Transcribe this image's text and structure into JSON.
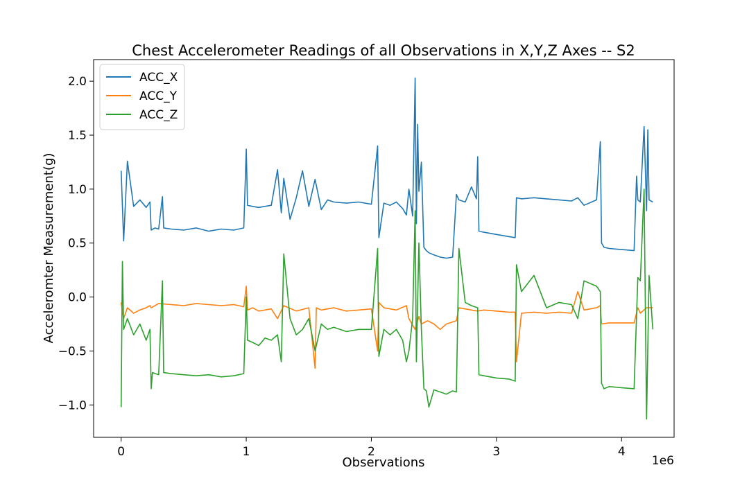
{
  "chart_data": {
    "type": "line",
    "title": "Chest Accelerometer Readings of all Observations in X,Y,Z Axes -- S2",
    "xlabel": "Observations",
    "ylabel": "Acceleromter Measurement(g)",
    "x_offset_label": "1e6",
    "xlim": [
      -0.22,
      4.42
    ],
    "ylim": [
      -1.3,
      2.2
    ],
    "xticks": [
      0,
      1,
      2,
      3,
      4
    ],
    "xtick_labels": [
      "0",
      "1",
      "2",
      "3",
      "4"
    ],
    "yticks": [
      -1.0,
      -0.5,
      0.0,
      0.5,
      1.0,
      1.5,
      2.0
    ],
    "ytick_labels": [
      "−1.0",
      "−0.5",
      "0.0",
      "0.5",
      "1.0",
      "1.5",
      "2.0"
    ],
    "grid": false,
    "legend": "top-left",
    "series": [
      {
        "name": "ACC_X",
        "color": "#1f77b4",
        "x": [
          0,
          0.02,
          0.05,
          0.1,
          0.15,
          0.2,
          0.23,
          0.24,
          0.27,
          0.3,
          0.33,
          0.34,
          0.4,
          0.5,
          0.6,
          0.7,
          0.8,
          0.9,
          0.98,
          1.0,
          1.01,
          1.05,
          1.1,
          1.2,
          1.25,
          1.28,
          1.3,
          1.35,
          1.4,
          1.45,
          1.5,
          1.55,
          1.6,
          1.65,
          1.7,
          1.8,
          1.9,
          2.0,
          2.05,
          2.06,
          2.1,
          2.15,
          2.2,
          2.25,
          2.28,
          2.3,
          2.33,
          2.35,
          2.36,
          2.37,
          2.38,
          2.4,
          2.42,
          2.44,
          2.46,
          2.5,
          2.55,
          2.6,
          2.65,
          2.68,
          2.7,
          2.75,
          2.8,
          2.84,
          2.85,
          2.86,
          2.9,
          3.0,
          3.1,
          3.15,
          3.16,
          3.2,
          3.3,
          3.4,
          3.5,
          3.6,
          3.65,
          3.7,
          3.8,
          3.83,
          3.84,
          3.86,
          3.9,
          4.0,
          4.1,
          4.12,
          4.13,
          4.15,
          4.18,
          4.2,
          4.21,
          4.22,
          4.25
        ],
        "y": [
          1.17,
          0.52,
          1.26,
          0.84,
          0.9,
          0.83,
          0.88,
          0.62,
          0.64,
          0.63,
          0.93,
          0.64,
          0.63,
          0.62,
          0.64,
          0.61,
          0.63,
          0.62,
          0.64,
          1.37,
          0.85,
          0.84,
          0.83,
          0.85,
          1.18,
          0.78,
          1.1,
          0.72,
          0.92,
          1.17,
          0.84,
          1.09,
          0.81,
          0.9,
          0.88,
          0.87,
          0.88,
          0.86,
          1.4,
          0.55,
          0.87,
          0.85,
          0.88,
          0.82,
          0.76,
          1.0,
          0.75,
          2.03,
          0.68,
          1.6,
          0.98,
          1.25,
          0.46,
          0.43,
          0.41,
          0.39,
          0.37,
          0.36,
          0.37,
          0.95,
          0.9,
          0.88,
          1.02,
          0.91,
          1.3,
          0.61,
          0.6,
          0.58,
          0.56,
          0.55,
          0.92,
          0.91,
          0.92,
          0.91,
          0.9,
          0.89,
          0.92,
          0.85,
          0.9,
          1.44,
          0.5,
          0.46,
          0.45,
          0.44,
          0.43,
          1.12,
          0.9,
          0.88,
          1.58,
          0.8,
          1.55,
          0.9,
          0.88
        ]
      },
      {
        "name": "ACC_Y",
        "color": "#ff7f0e",
        "x": [
          0,
          0.02,
          0.05,
          0.1,
          0.15,
          0.2,
          0.23,
          0.24,
          0.3,
          0.4,
          0.5,
          0.6,
          0.7,
          0.8,
          0.9,
          0.98,
          1.0,
          1.01,
          1.05,
          1.1,
          1.2,
          1.25,
          1.3,
          1.4,
          1.5,
          1.55,
          1.56,
          1.6,
          1.7,
          1.8,
          1.9,
          2.0,
          2.05,
          2.06,
          2.1,
          2.2,
          2.28,
          2.3,
          2.35,
          2.38,
          2.4,
          2.45,
          2.5,
          2.55,
          2.6,
          2.68,
          2.7,
          2.8,
          2.85,
          2.9,
          3.0,
          3.1,
          3.15,
          3.16,
          3.2,
          3.3,
          3.4,
          3.5,
          3.6,
          3.65,
          3.7,
          3.8,
          3.83,
          3.84,
          3.9,
          4.0,
          4.1,
          4.13,
          4.15,
          4.2,
          4.25
        ],
        "y": [
          -0.05,
          -0.2,
          -0.1,
          -0.15,
          -0.12,
          -0.1,
          -0.08,
          -0.1,
          -0.06,
          -0.07,
          -0.08,
          -0.06,
          -0.07,
          -0.08,
          -0.07,
          -0.09,
          0.1,
          -0.12,
          -0.1,
          -0.13,
          -0.11,
          -0.2,
          -0.08,
          -0.13,
          -0.1,
          -0.66,
          -0.1,
          -0.12,
          -0.1,
          -0.13,
          -0.12,
          -0.11,
          -0.5,
          -0.05,
          -0.1,
          -0.12,
          -0.08,
          -0.2,
          -0.3,
          -0.18,
          -0.25,
          -0.22,
          -0.25,
          -0.3,
          -0.25,
          -0.22,
          -0.1,
          -0.12,
          -0.13,
          -0.12,
          -0.13,
          -0.14,
          -0.14,
          -0.6,
          -0.15,
          -0.14,
          -0.15,
          -0.14,
          -0.15,
          0.05,
          -0.12,
          -0.1,
          -0.08,
          -0.25,
          -0.24,
          -0.24,
          -0.24,
          -0.1,
          -0.15,
          -0.1,
          -0.1
        ]
      },
      {
        "name": "ACC_Z",
        "color": "#2ca02c",
        "x": [
          0,
          0.01,
          0.02,
          0.05,
          0.1,
          0.15,
          0.2,
          0.23,
          0.24,
          0.25,
          0.3,
          0.33,
          0.34,
          0.4,
          0.5,
          0.6,
          0.7,
          0.8,
          0.9,
          0.98,
          1.0,
          1.01,
          1.05,
          1.1,
          1.15,
          1.2,
          1.25,
          1.28,
          1.3,
          1.35,
          1.4,
          1.45,
          1.5,
          1.55,
          1.6,
          1.65,
          1.7,
          1.8,
          1.9,
          2.0,
          2.05,
          2.06,
          2.1,
          2.15,
          2.2,
          2.25,
          2.28,
          2.3,
          2.33,
          2.35,
          2.36,
          2.38,
          2.4,
          2.42,
          2.44,
          2.46,
          2.5,
          2.55,
          2.6,
          2.65,
          2.68,
          2.7,
          2.75,
          2.8,
          2.85,
          2.86,
          2.9,
          3.0,
          3.1,
          3.15,
          3.16,
          3.2,
          3.3,
          3.4,
          3.5,
          3.6,
          3.65,
          3.7,
          3.8,
          3.83,
          3.84,
          3.86,
          3.9,
          4.0,
          4.1,
          4.13,
          4.15,
          4.18,
          4.2,
          4.22,
          4.25
        ],
        "y": [
          -1.02,
          0.33,
          -0.3,
          -0.2,
          -0.35,
          -0.25,
          -0.4,
          -0.3,
          -0.85,
          -0.7,
          -0.72,
          0.15,
          -0.7,
          -0.71,
          -0.72,
          -0.73,
          -0.72,
          -0.74,
          -0.73,
          -0.71,
          0.0,
          -0.4,
          -0.42,
          -0.45,
          -0.38,
          -0.4,
          -0.35,
          -0.6,
          0.4,
          -0.2,
          -0.35,
          -0.3,
          -0.2,
          -0.5,
          -0.25,
          -0.3,
          -0.28,
          -0.32,
          -0.3,
          -0.3,
          0.45,
          -0.55,
          -0.3,
          -0.35,
          -0.3,
          -0.4,
          -0.6,
          -0.5,
          -0.2,
          0.8,
          -0.6,
          0.5,
          -0.3,
          -0.85,
          -0.87,
          -1.02,
          -0.86,
          -0.88,
          -0.9,
          -0.87,
          -0.88,
          0.45,
          -0.05,
          -0.08,
          -0.1,
          -0.72,
          -0.73,
          -0.75,
          -0.76,
          -0.78,
          0.3,
          0.05,
          0.2,
          -0.1,
          -0.05,
          -0.07,
          -0.2,
          0.15,
          0.1,
          0.05,
          -0.8,
          -0.85,
          -0.83,
          -0.84,
          -0.85,
          0.18,
          0.15,
          1.0,
          -1.13,
          0.2,
          -0.3
        ]
      }
    ]
  }
}
